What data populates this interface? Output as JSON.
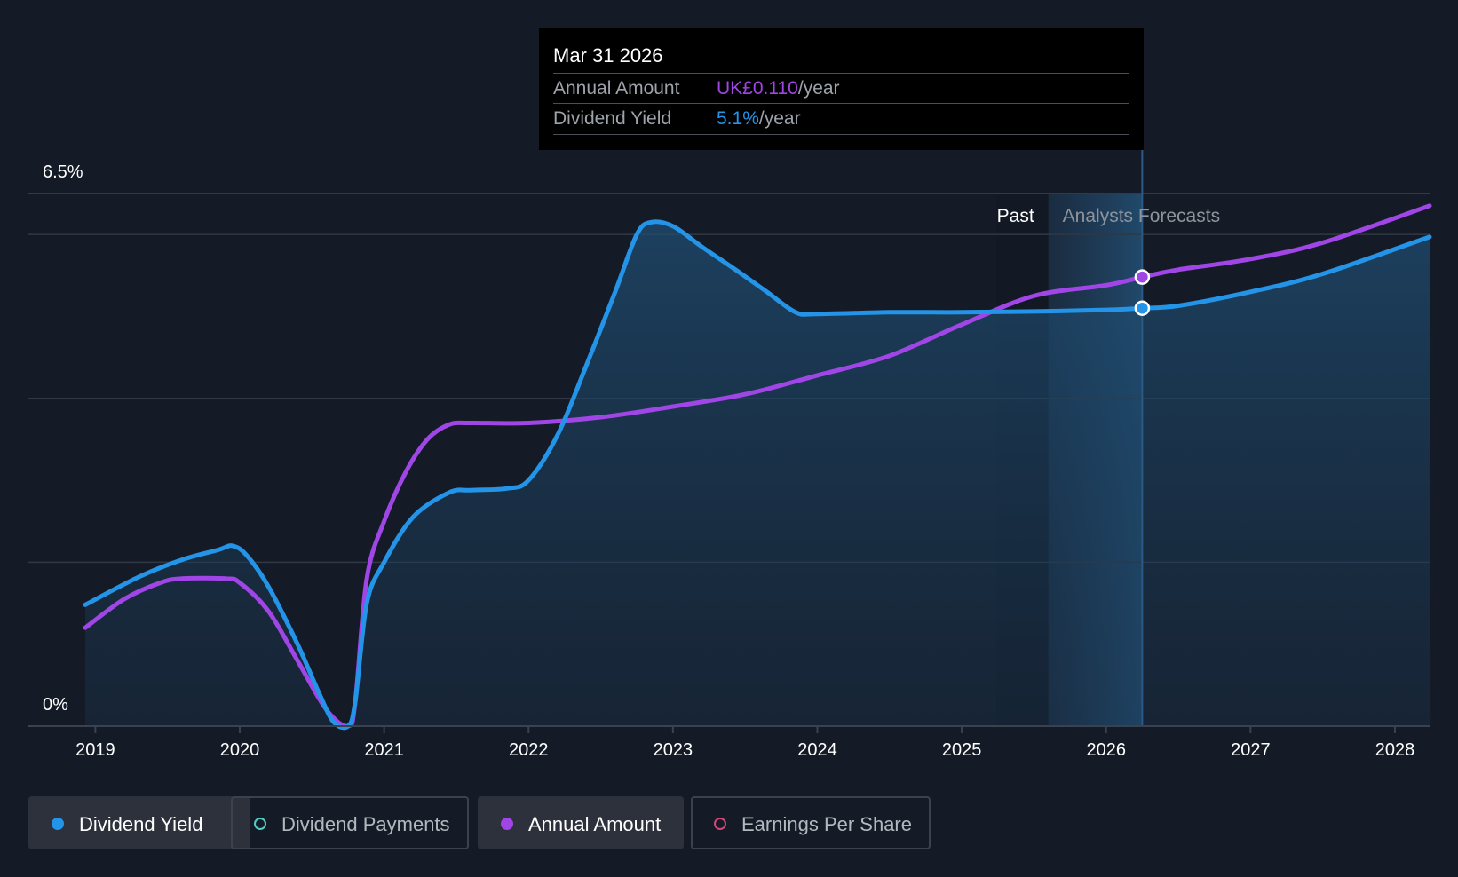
{
  "tooltip": {
    "date": "Mar 31 2026",
    "annual_label": "Annual Amount",
    "annual_value": "UK£0.110",
    "yield_label": "Dividend Yield",
    "yield_value": "5.1%",
    "unit": "/year"
  },
  "legend": [
    {
      "label": "Dividend Yield",
      "color": "#2394e8",
      "active": true
    },
    {
      "label": "Dividend Payments",
      "color": "#4ecdc4",
      "active": false
    },
    {
      "label": "Annual Amount",
      "color": "#a045e6",
      "active": true
    },
    {
      "label": "Earnings Per Share",
      "color": "#d0467a",
      "active": false
    }
  ],
  "colors": {
    "background": "#151b26",
    "yield": "#2394e8",
    "annual": "#a045e6",
    "grid": "#2f3845",
    "axis_text": "#ffffff"
  },
  "chart_data": {
    "type": "line",
    "title": "",
    "xlabel": "",
    "ylabel": "",
    "ylim": [
      0,
      6.5
    ],
    "xlim": [
      2018.93,
      2028.24
    ],
    "y_tick_labels": [
      {
        "value": 6.5,
        "label": "6.5%"
      },
      {
        "value": 0,
        "label": "0%"
      }
    ],
    "x_ticks": [
      2019,
      2020,
      2021,
      2022,
      2023,
      2024,
      2025,
      2026,
      2027,
      2028
    ],
    "x_tick_labels": [
      "2019",
      "2020",
      "2021",
      "2022",
      "2023",
      "2024",
      "2025",
      "2026",
      "2027",
      "2028"
    ],
    "gridlines": [
      2,
      4,
      6,
      6.5
    ],
    "past_label": "Past",
    "forecast_label": "Analysts Forecasts",
    "past_region": [
      2025.24,
      2025.6
    ],
    "forecast_region": [
      2025.6,
      2026.25
    ],
    "cursor_x": 2026.25,
    "series": [
      {
        "name": "Dividend Yield",
        "color": "#2394e8",
        "points": [
          [
            2018.93,
            1.48
          ],
          [
            2019.3,
            1.82
          ],
          [
            2019.6,
            2.03
          ],
          [
            2019.85,
            2.15
          ],
          [
            2019.95,
            2.2
          ],
          [
            2020.05,
            2.08
          ],
          [
            2020.2,
            1.7
          ],
          [
            2020.4,
            1.0
          ],
          [
            2020.55,
            0.4
          ],
          [
            2020.65,
            0.05
          ],
          [
            2020.75,
            0.0
          ],
          [
            2020.8,
            0.3
          ],
          [
            2020.88,
            1.5
          ],
          [
            2021.0,
            2.0
          ],
          [
            2021.2,
            2.55
          ],
          [
            2021.45,
            2.85
          ],
          [
            2021.6,
            2.88
          ],
          [
            2021.85,
            2.9
          ],
          [
            2022.0,
            3.0
          ],
          [
            2022.2,
            3.55
          ],
          [
            2022.4,
            4.4
          ],
          [
            2022.6,
            5.3
          ],
          [
            2022.75,
            6.0
          ],
          [
            2022.85,
            6.15
          ],
          [
            2023.0,
            6.1
          ],
          [
            2023.2,
            5.85
          ],
          [
            2023.45,
            5.55
          ],
          [
            2023.65,
            5.3
          ],
          [
            2023.85,
            5.05
          ],
          [
            2024.0,
            5.03
          ],
          [
            2024.5,
            5.05
          ],
          [
            2025.0,
            5.05
          ],
          [
            2025.5,
            5.06
          ],
          [
            2026.0,
            5.08
          ],
          [
            2026.25,
            5.1
          ],
          [
            2026.5,
            5.13
          ],
          [
            2027.0,
            5.3
          ],
          [
            2027.5,
            5.52
          ],
          [
            2028.24,
            5.97
          ]
        ]
      },
      {
        "name": "Annual Amount",
        "color": "#a045e6",
        "points": [
          [
            2018.93,
            1.2
          ],
          [
            2019.2,
            1.55
          ],
          [
            2019.45,
            1.75
          ],
          [
            2019.6,
            1.8
          ],
          [
            2019.9,
            1.8
          ],
          [
            2020.0,
            1.75
          ],
          [
            2020.2,
            1.4
          ],
          [
            2020.4,
            0.8
          ],
          [
            2020.6,
            0.2
          ],
          [
            2020.75,
            0.0
          ],
          [
            2020.8,
            0.3
          ],
          [
            2020.88,
            1.8
          ],
          [
            2021.0,
            2.5
          ],
          [
            2021.15,
            3.1
          ],
          [
            2021.3,
            3.5
          ],
          [
            2021.45,
            3.68
          ],
          [
            2021.6,
            3.7
          ],
          [
            2022.0,
            3.7
          ],
          [
            2022.5,
            3.77
          ],
          [
            2023.0,
            3.9
          ],
          [
            2023.5,
            4.05
          ],
          [
            2024.0,
            4.28
          ],
          [
            2024.5,
            4.52
          ],
          [
            2025.0,
            4.9
          ],
          [
            2025.5,
            5.25
          ],
          [
            2026.0,
            5.38
          ],
          [
            2026.25,
            5.48
          ],
          [
            2026.5,
            5.57
          ],
          [
            2027.0,
            5.7
          ],
          [
            2027.5,
            5.9
          ],
          [
            2028.24,
            6.35
          ]
        ]
      }
    ],
    "highlight_points": [
      {
        "series": "Annual Amount",
        "x": 2026.25,
        "y": 5.48
      },
      {
        "series": "Dividend Yield",
        "x": 2026.25,
        "y": 5.1
      }
    ]
  }
}
